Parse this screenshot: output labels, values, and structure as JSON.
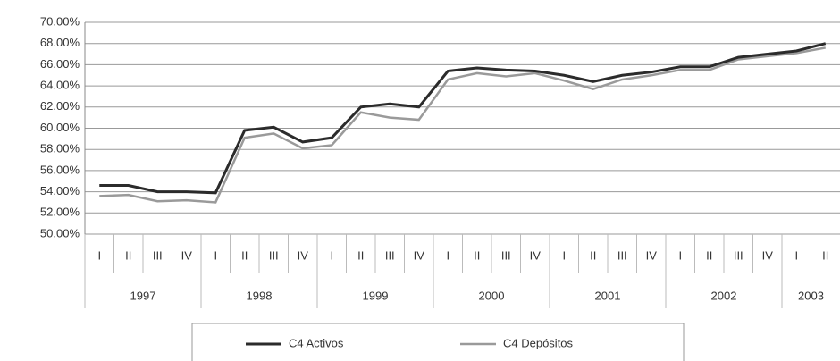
{
  "chart_data": {
    "type": "line",
    "groups": [
      {
        "label": "1997",
        "categories": [
          "I",
          "II",
          "III",
          "IV"
        ]
      },
      {
        "label": "1998",
        "categories": [
          "I",
          "II",
          "III",
          "IV"
        ]
      },
      {
        "label": "1999",
        "categories": [
          "I",
          "II",
          "III",
          "IV"
        ]
      },
      {
        "label": "2000",
        "categories": [
          "I",
          "II",
          "III",
          "IV"
        ]
      },
      {
        "label": "2001",
        "categories": [
          "I",
          "II",
          "III",
          "IV"
        ]
      },
      {
        "label": "2002",
        "categories": [
          "I",
          "II",
          "III",
          "IV"
        ]
      },
      {
        "label": "2003",
        "categories": [
          "I",
          "II"
        ]
      }
    ],
    "series": [
      {
        "name": "C4 Activos",
        "color": "#2b2b2b",
        "values": [
          54.6,
          54.6,
          54.0,
          54.0,
          53.9,
          59.8,
          60.1,
          58.7,
          59.1,
          62.0,
          62.3,
          62.0,
          65.4,
          65.7,
          65.5,
          65.4,
          65.0,
          64.4,
          65.0,
          65.3,
          65.8,
          65.8,
          66.7,
          67.0,
          67.3,
          68.0
        ]
      },
      {
        "name": "C4 Depósitos",
        "color": "#9a9a9a",
        "values": [
          53.6,
          53.7,
          53.1,
          53.2,
          53.0,
          59.1,
          59.5,
          58.1,
          58.4,
          61.5,
          61.0,
          60.8,
          64.6,
          65.2,
          64.9,
          65.2,
          64.5,
          63.7,
          64.6,
          65.0,
          65.5,
          65.5,
          66.5,
          66.8,
          67.1,
          67.6
        ]
      }
    ],
    "ylim": [
      50,
      70
    ],
    "yticks": [
      {
        "value": 50,
        "label": "50.00%"
      },
      {
        "value": 52,
        "label": "52.00%"
      },
      {
        "value": 54,
        "label": "54.00%"
      },
      {
        "value": 56,
        "label": "56.00%"
      },
      {
        "value": 58,
        "label": "58.00%"
      },
      {
        "value": 60,
        "label": "60.00%"
      },
      {
        "value": 62,
        "label": "62.00%"
      },
      {
        "value": 64,
        "label": "64.00%"
      },
      {
        "value": 66,
        "label": "66.00%"
      },
      {
        "value": 68,
        "label": "68.00%"
      },
      {
        "value": 70,
        "label": "70.00%"
      }
    ],
    "grid": true
  }
}
